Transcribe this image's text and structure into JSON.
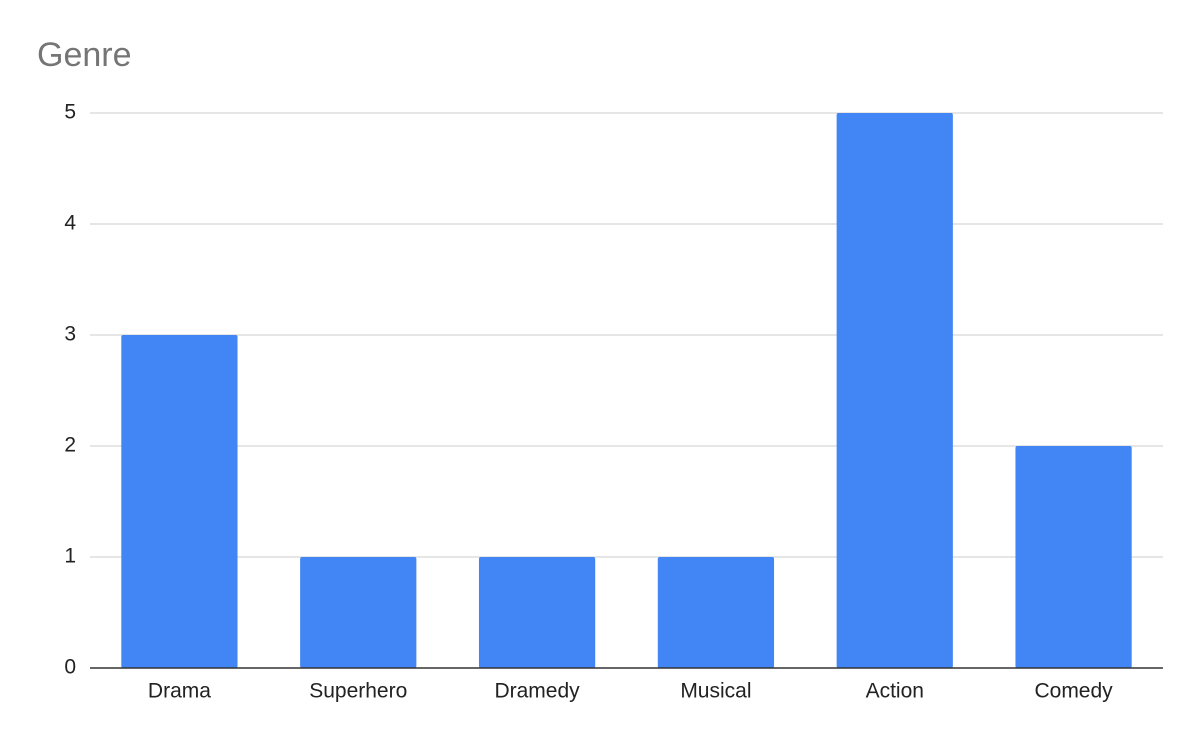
{
  "chart_data": {
    "type": "bar",
    "title": "Genre",
    "categories": [
      "Drama",
      "Superhero",
      "Dramedy",
      "Musical",
      "Action",
      "Comedy"
    ],
    "values": [
      3,
      1,
      1,
      1,
      5,
      2
    ],
    "color": "#4285f4",
    "ylim": [
      0,
      5
    ],
    "yticks": [
      0,
      1,
      2,
      3,
      4,
      5
    ],
    "grid": true
  }
}
